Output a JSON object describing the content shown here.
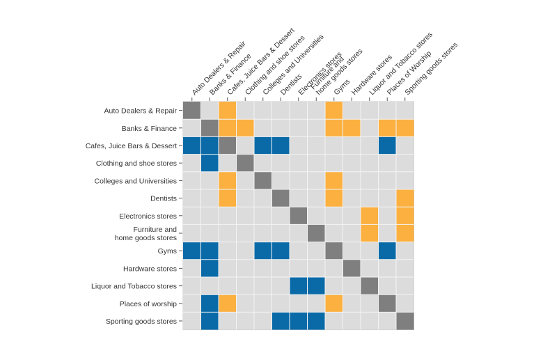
{
  "chart_data": {
    "type": "heatmap",
    "title": "",
    "xlabel": "",
    "ylabel": "",
    "grid": true,
    "legend": "none",
    "columns": [
      [
        "Auto Dealers & Repair"
      ],
      [
        "Banks & Finance"
      ],
      [
        "Cafes, Juice Bars & Dessert"
      ],
      [
        "Clothing and shoe stores"
      ],
      [
        "Colleges and Universities"
      ],
      [
        "Dentists"
      ],
      [
        "Electronics stores"
      ],
      [
        "Furniture and",
        "home goods stores"
      ],
      [
        "Gyms"
      ],
      [
        "Hardware stores"
      ],
      [
        "Liquor and Tobacco stores"
      ],
      [
        "Places of Worship"
      ],
      [
        "Sporting goods stores"
      ]
    ],
    "rows": [
      [
        "Auto Dealers & Repair"
      ],
      [
        "Banks & Finance"
      ],
      [
        "Cafes, Juice Bars & Dessert"
      ],
      [
        "Clothing and shoe stores"
      ],
      [
        "Colleges and Universities"
      ],
      [
        "Dentists"
      ],
      [
        "Electronics stores"
      ],
      [
        "Furniture and",
        "home goods stores"
      ],
      [
        "Gyms"
      ],
      [
        "Hardware stores"
      ],
      [
        "Liquor and Tobacco stores"
      ],
      [
        "Places of worship"
      ],
      [
        "Sporting goods stores"
      ]
    ],
    "category_colors": {
      "0": "#dcdcdc",
      "1": "#fbb040",
      "2": "#0a6aa8",
      "3": "#7f7f7f"
    },
    "matrix": [
      [
        3,
        0,
        1,
        0,
        0,
        0,
        0,
        0,
        1,
        0,
        0,
        0,
        0
      ],
      [
        0,
        3,
        1,
        1,
        0,
        0,
        0,
        0,
        1,
        1,
        0,
        1,
        1
      ],
      [
        2,
        2,
        3,
        0,
        2,
        2,
        0,
        0,
        0,
        0,
        0,
        2,
        0
      ],
      [
        0,
        2,
        0,
        3,
        0,
        0,
        0,
        0,
        0,
        0,
        0,
        0,
        0
      ],
      [
        0,
        0,
        1,
        0,
        3,
        0,
        0,
        0,
        1,
        0,
        0,
        0,
        0
      ],
      [
        0,
        0,
        1,
        0,
        0,
        3,
        0,
        0,
        1,
        0,
        0,
        0,
        1
      ],
      [
        0,
        0,
        0,
        0,
        0,
        0,
        3,
        0,
        0,
        0,
        1,
        0,
        1
      ],
      [
        0,
        0,
        0,
        0,
        0,
        0,
        0,
        3,
        0,
        0,
        1,
        0,
        1
      ],
      [
        2,
        2,
        0,
        0,
        2,
        2,
        0,
        0,
        3,
        0,
        0,
        2,
        0
      ],
      [
        0,
        2,
        0,
        0,
        0,
        0,
        0,
        0,
        0,
        3,
        0,
        0,
        0
      ],
      [
        0,
        0,
        0,
        0,
        0,
        0,
        2,
        2,
        0,
        0,
        3,
        0,
        0
      ],
      [
        0,
        2,
        1,
        0,
        0,
        0,
        0,
        0,
        1,
        0,
        0,
        3,
        0
      ],
      [
        0,
        2,
        0,
        0,
        0,
        2,
        2,
        2,
        0,
        0,
        0,
        0,
        3
      ]
    ]
  }
}
